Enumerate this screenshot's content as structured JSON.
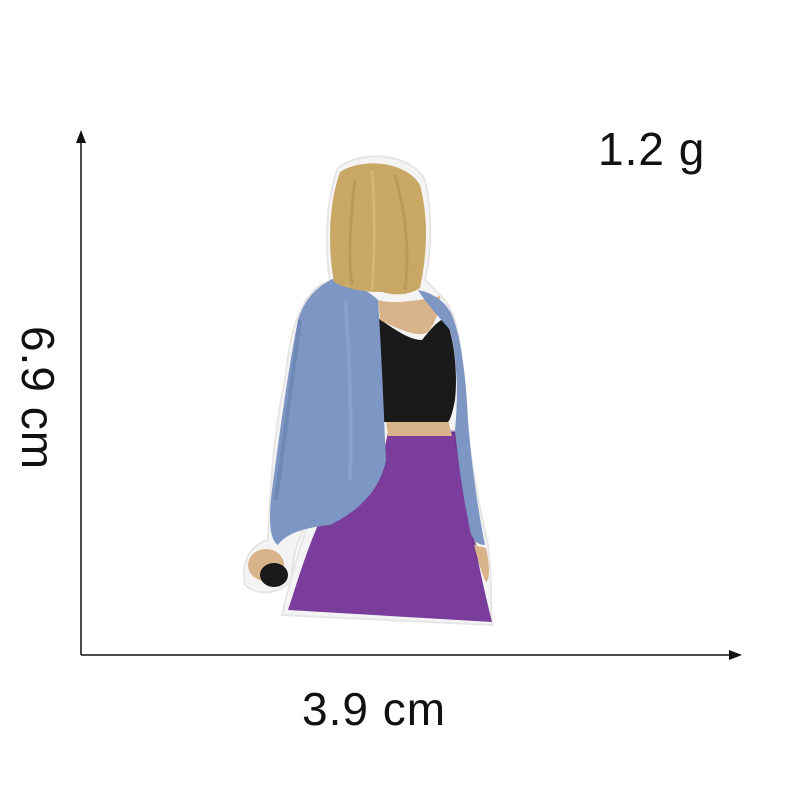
{
  "dimensions": {
    "weight": "1.2 g",
    "width": "3.9 cm",
    "height": "6.9 cm"
  },
  "product": {
    "type": "embroidered patch",
    "colors": {
      "hair": "#c9a866",
      "jacket": "#7d96c4",
      "top": "#1a1a1a",
      "skirt": "#7a3d9c",
      "skin": "#d9b48a",
      "outline": "#f2f2f2"
    }
  },
  "icons": {
    "vertical-axis": "arrow-up-icon",
    "horizontal-axis": "arrow-right-icon"
  }
}
